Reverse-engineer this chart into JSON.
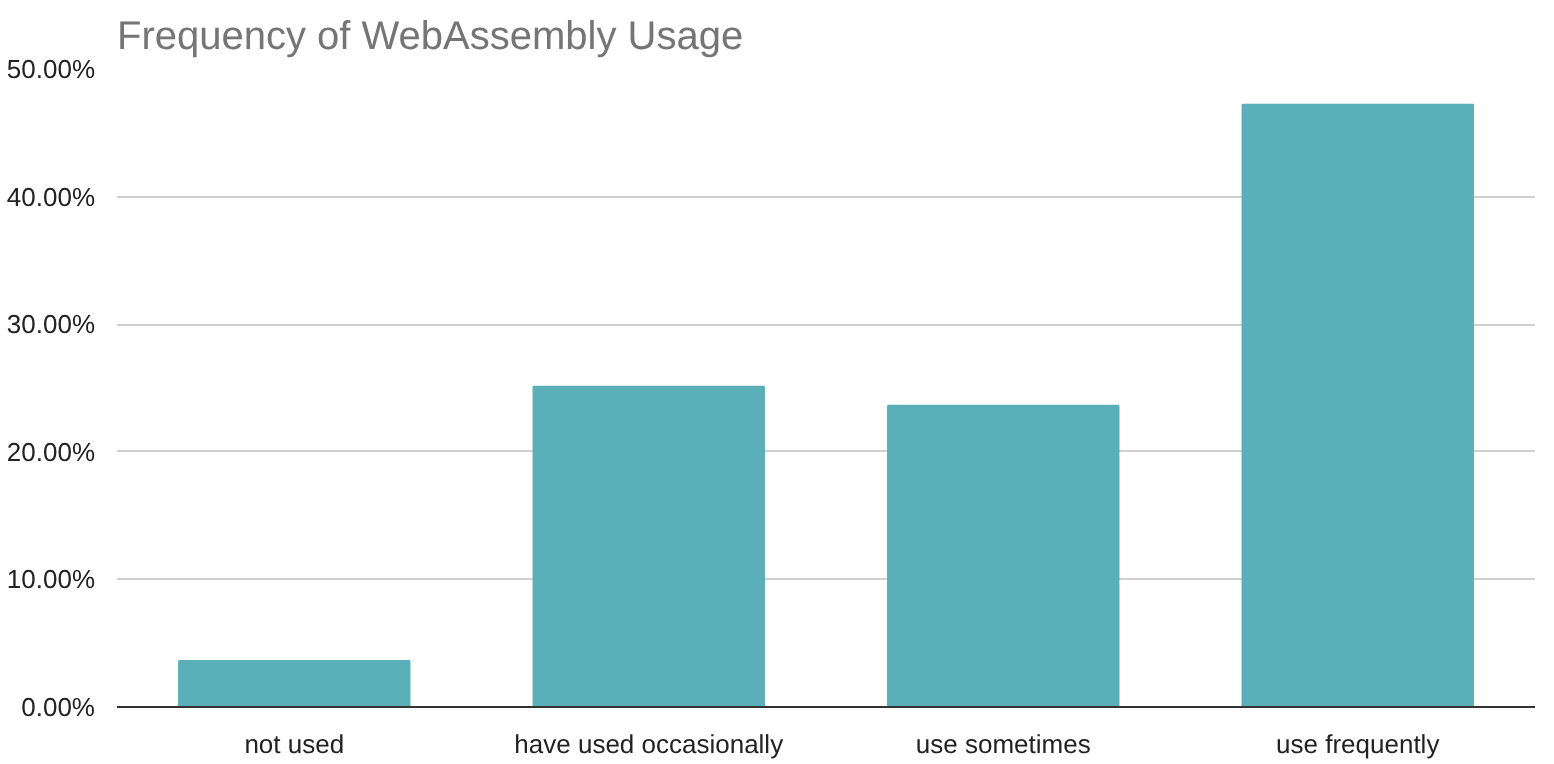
{
  "chart_data": {
    "type": "bar",
    "title": "Frequency of WebAssembly Usage",
    "categories": [
      "not used",
      "have used occasionally",
      "use sometimes",
      "use frequently"
    ],
    "values": [
      3.6,
      25.1,
      23.6,
      47.2
    ],
    "color": "#5aafb8",
    "ylim": [
      0,
      50
    ],
    "yticks": [
      {
        "value": 0,
        "label": "0.00%"
      },
      {
        "value": 10,
        "label": "10.00%"
      },
      {
        "value": 20,
        "label": "20.00%"
      },
      {
        "value": 30,
        "label": "30.00%"
      },
      {
        "value": 40,
        "label": "40.00%"
      },
      {
        "value": 50,
        "label": "50.00%"
      }
    ],
    "grid": "y"
  }
}
